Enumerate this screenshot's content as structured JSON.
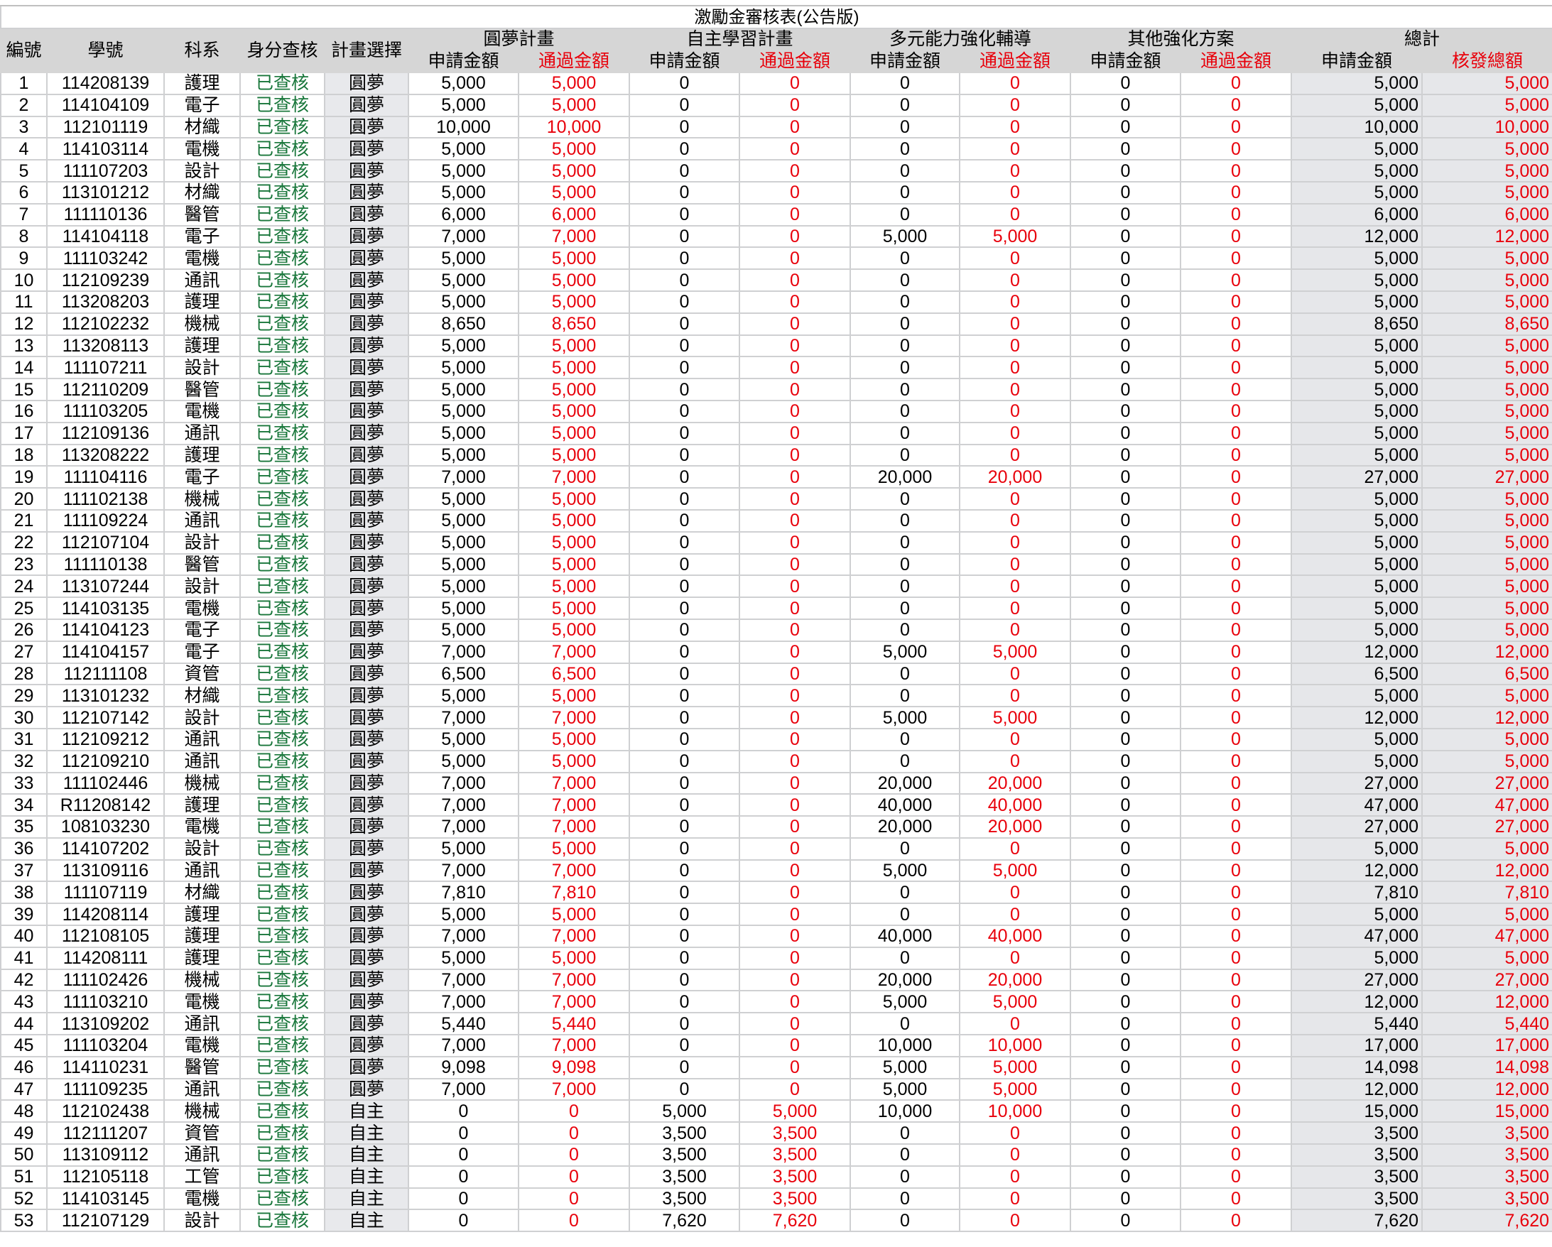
{
  "title": "激勵金審核表(公告版)",
  "headers": {
    "no": "編號",
    "student_id": "學號",
    "dept": "科系",
    "identity_check": "身分查核",
    "plan_choice": "計畫選擇",
    "groups": [
      "圓夢計畫",
      "自主學習計畫",
      "多元能力強化輔導",
      "其他強化方案",
      "總計"
    ],
    "apply": "申請金額",
    "approved": "通過金額",
    "total_issued": "核發總額"
  },
  "colors": {
    "approved": "#e8000b",
    "checked": "#18763a",
    "header_bg": "#d6d6d6"
  },
  "rows": [
    [
      "1",
      "114208139",
      "護理",
      "已查核",
      "圓夢",
      "5,000",
      "5,000",
      "0",
      "0",
      "0",
      "0",
      "0",
      "0",
      "5,000",
      "5,000"
    ],
    [
      "2",
      "114104109",
      "電子",
      "已查核",
      "圓夢",
      "5,000",
      "5,000",
      "0",
      "0",
      "0",
      "0",
      "0",
      "0",
      "5,000",
      "5,000"
    ],
    [
      "3",
      "112101119",
      "材織",
      "已查核",
      "圓夢",
      "10,000",
      "10,000",
      "0",
      "0",
      "0",
      "0",
      "0",
      "0",
      "10,000",
      "10,000"
    ],
    [
      "4",
      "114103114",
      "電機",
      "已查核",
      "圓夢",
      "5,000",
      "5,000",
      "0",
      "0",
      "0",
      "0",
      "0",
      "0",
      "5,000",
      "5,000"
    ],
    [
      "5",
      "111107203",
      "設計",
      "已查核",
      "圓夢",
      "5,000",
      "5,000",
      "0",
      "0",
      "0",
      "0",
      "0",
      "0",
      "5,000",
      "5,000"
    ],
    [
      "6",
      "113101212",
      "材織",
      "已查核",
      "圓夢",
      "5,000",
      "5,000",
      "0",
      "0",
      "0",
      "0",
      "0",
      "0",
      "5,000",
      "5,000"
    ],
    [
      "7",
      "111110136",
      "醫管",
      "已查核",
      "圓夢",
      "6,000",
      "6,000",
      "0",
      "0",
      "0",
      "0",
      "0",
      "0",
      "6,000",
      "6,000"
    ],
    [
      "8",
      "114104118",
      "電子",
      "已查核",
      "圓夢",
      "7,000",
      "7,000",
      "0",
      "0",
      "5,000",
      "5,000",
      "0",
      "0",
      "12,000",
      "12,000"
    ],
    [
      "9",
      "111103242",
      "電機",
      "已查核",
      "圓夢",
      "5,000",
      "5,000",
      "0",
      "0",
      "0",
      "0",
      "0",
      "0",
      "5,000",
      "5,000"
    ],
    [
      "10",
      "112109239",
      "通訊",
      "已查核",
      "圓夢",
      "5,000",
      "5,000",
      "0",
      "0",
      "0",
      "0",
      "0",
      "0",
      "5,000",
      "5,000"
    ],
    [
      "11",
      "113208203",
      "護理",
      "已查核",
      "圓夢",
      "5,000",
      "5,000",
      "0",
      "0",
      "0",
      "0",
      "0",
      "0",
      "5,000",
      "5,000"
    ],
    [
      "12",
      "112102232",
      "機械",
      "已查核",
      "圓夢",
      "8,650",
      "8,650",
      "0",
      "0",
      "0",
      "0",
      "0",
      "0",
      "8,650",
      "8,650"
    ],
    [
      "13",
      "113208113",
      "護理",
      "已查核",
      "圓夢",
      "5,000",
      "5,000",
      "0",
      "0",
      "0",
      "0",
      "0",
      "0",
      "5,000",
      "5,000"
    ],
    [
      "14",
      "111107211",
      "設計",
      "已查核",
      "圓夢",
      "5,000",
      "5,000",
      "0",
      "0",
      "0",
      "0",
      "0",
      "0",
      "5,000",
      "5,000"
    ],
    [
      "15",
      "112110209",
      "醫管",
      "已查核",
      "圓夢",
      "5,000",
      "5,000",
      "0",
      "0",
      "0",
      "0",
      "0",
      "0",
      "5,000",
      "5,000"
    ],
    [
      "16",
      "111103205",
      "電機",
      "已查核",
      "圓夢",
      "5,000",
      "5,000",
      "0",
      "0",
      "0",
      "0",
      "0",
      "0",
      "5,000",
      "5,000"
    ],
    [
      "17",
      "112109136",
      "通訊",
      "已查核",
      "圓夢",
      "5,000",
      "5,000",
      "0",
      "0",
      "0",
      "0",
      "0",
      "0",
      "5,000",
      "5,000"
    ],
    [
      "18",
      "113208222",
      "護理",
      "已查核",
      "圓夢",
      "5,000",
      "5,000",
      "0",
      "0",
      "0",
      "0",
      "0",
      "0",
      "5,000",
      "5,000"
    ],
    [
      "19",
      "111104116",
      "電子",
      "已查核",
      "圓夢",
      "7,000",
      "7,000",
      "0",
      "0",
      "20,000",
      "20,000",
      "0",
      "0",
      "27,000",
      "27,000"
    ],
    [
      "20",
      "111102138",
      "機械",
      "已查核",
      "圓夢",
      "5,000",
      "5,000",
      "0",
      "0",
      "0",
      "0",
      "0",
      "0",
      "5,000",
      "5,000"
    ],
    [
      "21",
      "111109224",
      "通訊",
      "已查核",
      "圓夢",
      "5,000",
      "5,000",
      "0",
      "0",
      "0",
      "0",
      "0",
      "0",
      "5,000",
      "5,000"
    ],
    [
      "22",
      "112107104",
      "設計",
      "已查核",
      "圓夢",
      "5,000",
      "5,000",
      "0",
      "0",
      "0",
      "0",
      "0",
      "0",
      "5,000",
      "5,000"
    ],
    [
      "23",
      "111110138",
      "醫管",
      "已查核",
      "圓夢",
      "5,000",
      "5,000",
      "0",
      "0",
      "0",
      "0",
      "0",
      "0",
      "5,000",
      "5,000"
    ],
    [
      "24",
      "113107244",
      "設計",
      "已查核",
      "圓夢",
      "5,000",
      "5,000",
      "0",
      "0",
      "0",
      "0",
      "0",
      "0",
      "5,000",
      "5,000"
    ],
    [
      "25",
      "114103135",
      "電機",
      "已查核",
      "圓夢",
      "5,000",
      "5,000",
      "0",
      "0",
      "0",
      "0",
      "0",
      "0",
      "5,000",
      "5,000"
    ],
    [
      "26",
      "114104123",
      "電子",
      "已查核",
      "圓夢",
      "5,000",
      "5,000",
      "0",
      "0",
      "0",
      "0",
      "0",
      "0",
      "5,000",
      "5,000"
    ],
    [
      "27",
      "114104157",
      "電子",
      "已查核",
      "圓夢",
      "7,000",
      "7,000",
      "0",
      "0",
      "5,000",
      "5,000",
      "0",
      "0",
      "12,000",
      "12,000"
    ],
    [
      "28",
      "112111108",
      "資管",
      "已查核",
      "圓夢",
      "6,500",
      "6,500",
      "0",
      "0",
      "0",
      "0",
      "0",
      "0",
      "6,500",
      "6,500"
    ],
    [
      "29",
      "113101232",
      "材織",
      "已查核",
      "圓夢",
      "5,000",
      "5,000",
      "0",
      "0",
      "0",
      "0",
      "0",
      "0",
      "5,000",
      "5,000"
    ],
    [
      "30",
      "112107142",
      "設計",
      "已查核",
      "圓夢",
      "7,000",
      "7,000",
      "0",
      "0",
      "5,000",
      "5,000",
      "0",
      "0",
      "12,000",
      "12,000"
    ],
    [
      "31",
      "112109212",
      "通訊",
      "已查核",
      "圓夢",
      "5,000",
      "5,000",
      "0",
      "0",
      "0",
      "0",
      "0",
      "0",
      "5,000",
      "5,000"
    ],
    [
      "32",
      "112109210",
      "通訊",
      "已查核",
      "圓夢",
      "5,000",
      "5,000",
      "0",
      "0",
      "0",
      "0",
      "0",
      "0",
      "5,000",
      "5,000"
    ],
    [
      "33",
      "111102446",
      "機械",
      "已查核",
      "圓夢",
      "7,000",
      "7,000",
      "0",
      "0",
      "20,000",
      "20,000",
      "0",
      "0",
      "27,000",
      "27,000"
    ],
    [
      "34",
      "R11208142",
      "護理",
      "已查核",
      "圓夢",
      "7,000",
      "7,000",
      "0",
      "0",
      "40,000",
      "40,000",
      "0",
      "0",
      "47,000",
      "47,000"
    ],
    [
      "35",
      "108103230",
      "電機",
      "已查核",
      "圓夢",
      "7,000",
      "7,000",
      "0",
      "0",
      "20,000",
      "20,000",
      "0",
      "0",
      "27,000",
      "27,000"
    ],
    [
      "36",
      "114107202",
      "設計",
      "已查核",
      "圓夢",
      "5,000",
      "5,000",
      "0",
      "0",
      "0",
      "0",
      "0",
      "0",
      "5,000",
      "5,000"
    ],
    [
      "37",
      "113109116",
      "通訊",
      "已查核",
      "圓夢",
      "7,000",
      "7,000",
      "0",
      "0",
      "5,000",
      "5,000",
      "0",
      "0",
      "12,000",
      "12,000"
    ],
    [
      "38",
      "111107119",
      "材織",
      "已查核",
      "圓夢",
      "7,810",
      "7,810",
      "0",
      "0",
      "0",
      "0",
      "0",
      "0",
      "7,810",
      "7,810"
    ],
    [
      "39",
      "114208114",
      "護理",
      "已查核",
      "圓夢",
      "5,000",
      "5,000",
      "0",
      "0",
      "0",
      "0",
      "0",
      "0",
      "5,000",
      "5,000"
    ],
    [
      "40",
      "112108105",
      "護理",
      "已查核",
      "圓夢",
      "7,000",
      "7,000",
      "0",
      "0",
      "40,000",
      "40,000",
      "0",
      "0",
      "47,000",
      "47,000"
    ],
    [
      "41",
      "114208111",
      "護理",
      "已查核",
      "圓夢",
      "5,000",
      "5,000",
      "0",
      "0",
      "0",
      "0",
      "0",
      "0",
      "5,000",
      "5,000"
    ],
    [
      "42",
      "111102426",
      "機械",
      "已查核",
      "圓夢",
      "7,000",
      "7,000",
      "0",
      "0",
      "20,000",
      "20,000",
      "0",
      "0",
      "27,000",
      "27,000"
    ],
    [
      "43",
      "111103210",
      "電機",
      "已查核",
      "圓夢",
      "7,000",
      "7,000",
      "0",
      "0",
      "5,000",
      "5,000",
      "0",
      "0",
      "12,000",
      "12,000"
    ],
    [
      "44",
      "113109202",
      "通訊",
      "已查核",
      "圓夢",
      "5,440",
      "5,440",
      "0",
      "0",
      "0",
      "0",
      "0",
      "0",
      "5,440",
      "5,440"
    ],
    [
      "45",
      "111103204",
      "電機",
      "已查核",
      "圓夢",
      "7,000",
      "7,000",
      "0",
      "0",
      "10,000",
      "10,000",
      "0",
      "0",
      "17,000",
      "17,000"
    ],
    [
      "46",
      "114110231",
      "醫管",
      "已查核",
      "圓夢",
      "9,098",
      "9,098",
      "0",
      "0",
      "5,000",
      "5,000",
      "0",
      "0",
      "14,098",
      "14,098"
    ],
    [
      "47",
      "111109235",
      "通訊",
      "已查核",
      "圓夢",
      "7,000",
      "7,000",
      "0",
      "0",
      "5,000",
      "5,000",
      "0",
      "0",
      "12,000",
      "12,000"
    ],
    [
      "48",
      "112102438",
      "機械",
      "已查核",
      "自主",
      "0",
      "0",
      "5,000",
      "5,000",
      "10,000",
      "10,000",
      "0",
      "0",
      "15,000",
      "15,000"
    ],
    [
      "49",
      "112111207",
      "資管",
      "已查核",
      "自主",
      "0",
      "0",
      "3,500",
      "3,500",
      "0",
      "0",
      "0",
      "0",
      "3,500",
      "3,500"
    ],
    [
      "50",
      "113109112",
      "通訊",
      "已查核",
      "自主",
      "0",
      "0",
      "3,500",
      "3,500",
      "0",
      "0",
      "0",
      "0",
      "3,500",
      "3,500"
    ],
    [
      "51",
      "112105118",
      "工管",
      "已查核",
      "自主",
      "0",
      "0",
      "3,500",
      "3,500",
      "0",
      "0",
      "0",
      "0",
      "3,500",
      "3,500"
    ],
    [
      "52",
      "114103145",
      "電機",
      "已查核",
      "自主",
      "0",
      "0",
      "3,500",
      "3,500",
      "0",
      "0",
      "0",
      "0",
      "3,500",
      "3,500"
    ],
    [
      "53",
      "112107129",
      "設計",
      "已查核",
      "自主",
      "0",
      "0",
      "7,620",
      "7,620",
      "0",
      "0",
      "0",
      "0",
      "7,620",
      "7,620"
    ]
  ]
}
